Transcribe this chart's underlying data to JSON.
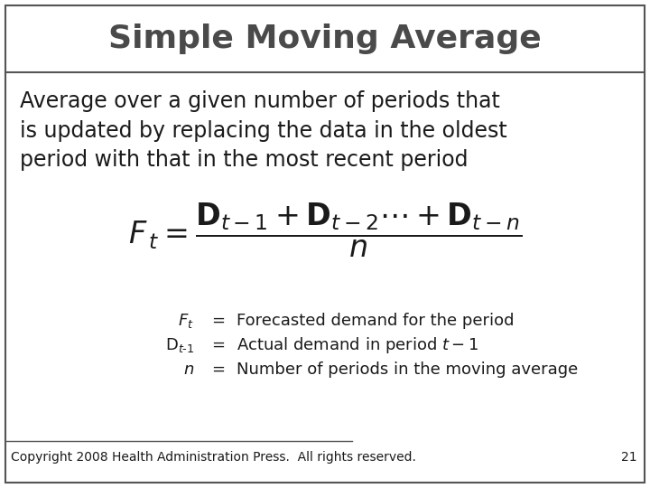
{
  "title": "Simple Moving Average",
  "title_fontsize": 26,
  "title_color": "#4a4a4a",
  "body_text": "Average over a given number of periods that\nis updated by replacing the data in the oldest\nperiod with that in the most recent period",
  "body_fontsize": 17,
  "body_color": "#1a1a1a",
  "formula": "$\\mathit{F}_{\\,t} = \\dfrac{\\mathbf{D}_{t-1} + \\mathbf{D}_{t-2}\\cdots + \\mathbf{D}_{t-n}}{n}$",
  "formula_fontsize": 24,
  "legend_lines": [
    [
      "$F_t$",
      "=",
      "Forecasted demand for the period"
    ],
    [
      "$\\mathrm{D}_{t\\text{-}1}$",
      "=",
      "Actual demand in period $t - 1$"
    ],
    [
      "$n$",
      "=",
      "Number of periods in the moving average"
    ]
  ],
  "legend_fontsize": 13,
  "footer_text": "Copyright 2008 Health Administration Press.  All rights reserved.",
  "footer_page": "21",
  "footer_fontsize": 10,
  "bg_color": "#ffffff",
  "border_color": "#555555",
  "text_color": "#1a1a1a"
}
